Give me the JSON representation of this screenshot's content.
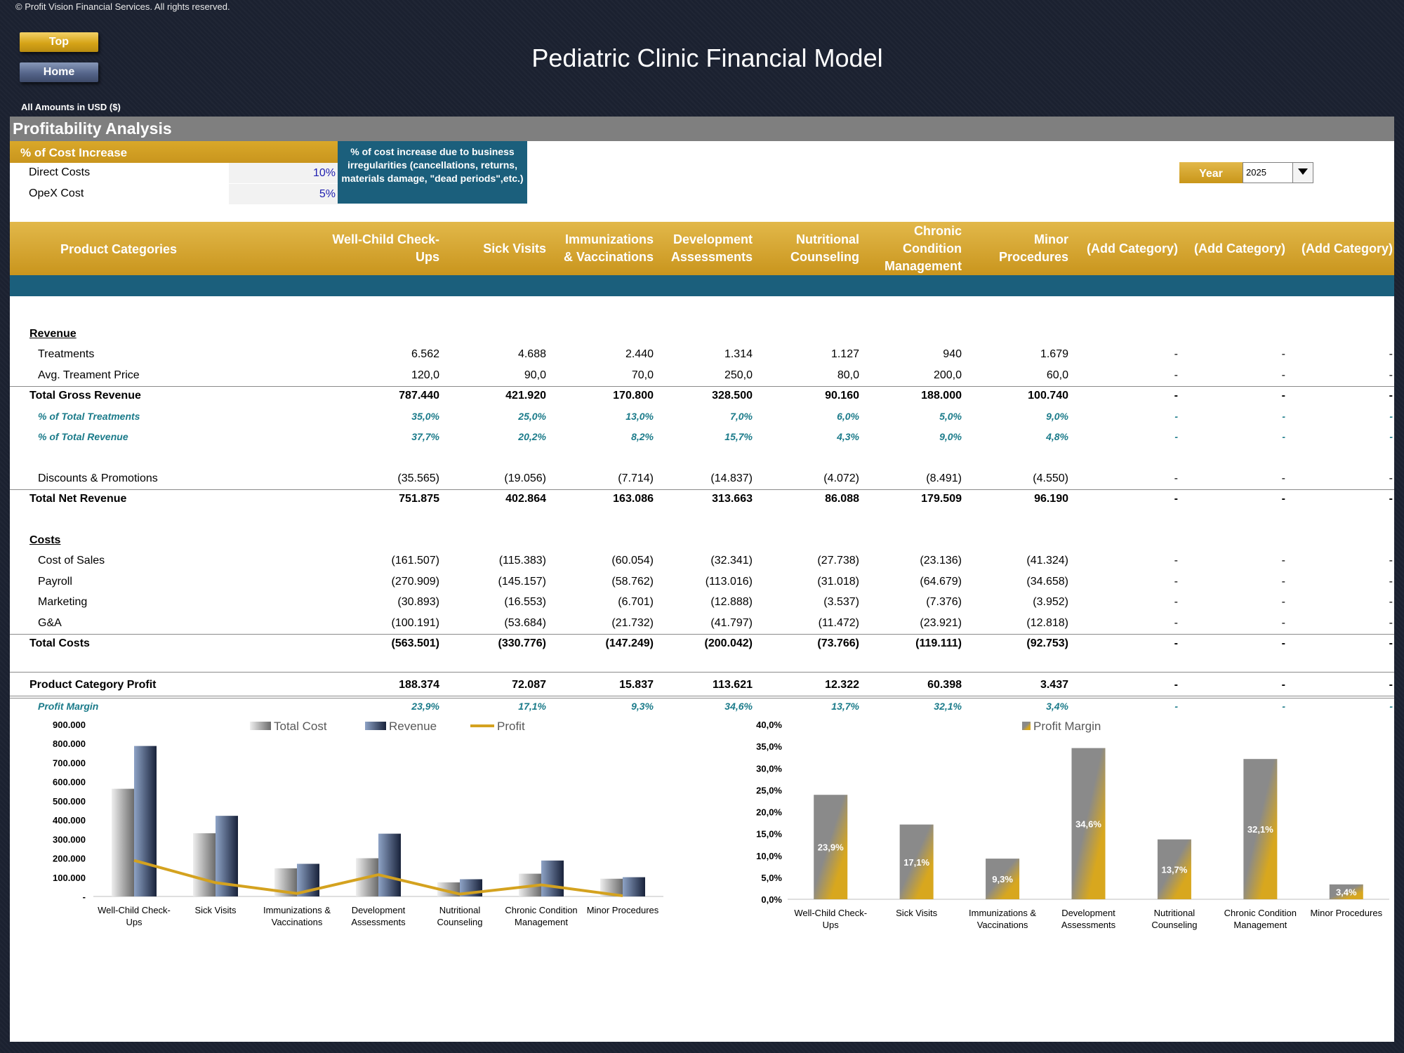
{
  "copyright": "© Profit Vision Financial Services. All rights reserved.",
  "nav": {
    "top_label": "Top",
    "home_label": "Home"
  },
  "title": "Pediatric Clinic Financial Model",
  "amounts_note": "All Amounts in  USD ($)",
  "section_title": "Profitability Analysis",
  "cost_increase": {
    "header": "% of Cost Increase",
    "rows": [
      {
        "label": "Direct Costs",
        "value": "10%"
      },
      {
        "label": "OpeX Cost",
        "value": "5%"
      }
    ],
    "note": "% of cost increase due to business irregularities (cancellations, returns, materials damage, \"dead periods\",etc.)"
  },
  "year": {
    "label": "Year",
    "value": "2025"
  },
  "table": {
    "header_title": "Product Categories",
    "columns": [
      "Well-Child Check-Ups",
      "Sick Visits",
      "Immunizations & Vaccinations",
      "Development Assessments",
      "Nutritional Counseling",
      "Chronic Condition Management",
      "Minor Procedures",
      "(Add Category)",
      "(Add Category)",
      "(Add Category)"
    ],
    "rows": [
      {
        "label": "Revenue",
        "style": "section",
        "values": []
      },
      {
        "label": "Treatments",
        "style": "normal",
        "values": [
          "6.562",
          "4.688",
          "2.440",
          "1.314",
          "1.127",
          "940",
          "1.679",
          "-",
          "-",
          "-"
        ]
      },
      {
        "label": "Avg. Treament Price",
        "style": "normal",
        "values": [
          "120,0",
          "90,0",
          "70,0",
          "250,0",
          "80,0",
          "200,0",
          "60,0",
          "-",
          "-",
          "-"
        ]
      },
      {
        "label": "Total Gross Revenue",
        "style": "total",
        "values": [
          "787.440",
          "421.920",
          "170.800",
          "328.500",
          "90.160",
          "188.000",
          "100.740",
          "-",
          "-",
          "-"
        ]
      },
      {
        "label": "% of Total Treatments",
        "style": "pct",
        "values": [
          "35,0%",
          "25,0%",
          "13,0%",
          "7,0%",
          "6,0%",
          "5,0%",
          "9,0%",
          "-",
          "-",
          "-"
        ]
      },
      {
        "label": "% of Total Revenue",
        "style": "pct",
        "values": [
          "37,7%",
          "20,2%",
          "8,2%",
          "15,7%",
          "4,3%",
          "9,0%",
          "4,8%",
          "-",
          "-",
          "-"
        ]
      },
      {
        "label": "Discounts & Promotions",
        "style": "normal",
        "values": [
          "(35.565)",
          "(19.056)",
          "(7.714)",
          "(14.837)",
          "(4.072)",
          "(8.491)",
          "(4.550)",
          "-",
          "-",
          "-"
        ]
      },
      {
        "label": "Total Net Revenue",
        "style": "total",
        "values": [
          "751.875",
          "402.864",
          "163.086",
          "313.663",
          "86.088",
          "179.509",
          "96.190",
          "-",
          "-",
          "-"
        ]
      },
      {
        "label": "Costs",
        "style": "section",
        "values": []
      },
      {
        "label": "Cost of Sales",
        "style": "normal",
        "values": [
          "(161.507)",
          "(115.383)",
          "(60.054)",
          "(32.341)",
          "(27.738)",
          "(23.136)",
          "(41.324)",
          "-",
          "-",
          "-"
        ]
      },
      {
        "label": "Payroll",
        "style": "normal",
        "values": [
          "(270.909)",
          "(145.157)",
          "(58.762)",
          "(113.016)",
          "(31.018)",
          "(64.679)",
          "(34.658)",
          "-",
          "-",
          "-"
        ]
      },
      {
        "label": "Marketing",
        "style": "normal",
        "values": [
          "(30.893)",
          "(16.553)",
          "(6.701)",
          "(12.888)",
          "(3.537)",
          "(7.376)",
          "(3.952)",
          "-",
          "-",
          "-"
        ]
      },
      {
        "label": "G&A",
        "style": "normal",
        "values": [
          "(100.191)",
          "(53.684)",
          "(21.732)",
          "(41.797)",
          "(11.472)",
          "(23.921)",
          "(12.818)",
          "-",
          "-",
          "-"
        ]
      },
      {
        "label": "Total Costs",
        "style": "total",
        "values": [
          "(563.501)",
          "(330.776)",
          "(147.249)",
          "(200.042)",
          "(73.766)",
          "(119.111)",
          "(92.753)",
          "-",
          "-",
          "-"
        ]
      },
      {
        "label": "Product Category Profit",
        "style": "total",
        "values": [
          "188.374",
          "72.087",
          "15.837",
          "113.621",
          "12.322",
          "60.398",
          "3.437",
          "-",
          "-",
          "-"
        ]
      },
      {
        "label": "Profit Margin",
        "style": "pct",
        "values": [
          "23,9%",
          "17,1%",
          "9,3%",
          "34,6%",
          "13,7%",
          "32,1%",
          "3,4%",
          "-",
          "-",
          "-"
        ]
      }
    ]
  },
  "colors": {
    "gold": "#d4a21f",
    "teal": "#1b5f7c",
    "grey": "#7f7f7f",
    "navy": "#1f2b48"
  },
  "chart_data": [
    {
      "type": "bar",
      "categories": [
        "Well-Child Check-Ups",
        "Sick Visits",
        "Immunizations & Vaccinations",
        "Development Assessments",
        "Nutritional Counseling",
        "Chronic Condition Management",
        "Minor Procedures"
      ],
      "series": [
        {
          "name": "Total Cost",
          "type": "bar",
          "values": [
            563501,
            330776,
            147249,
            200042,
            73766,
            119111,
            92753
          ]
        },
        {
          "name": "Revenue",
          "type": "bar",
          "values": [
            787440,
            421920,
            170800,
            328500,
            90160,
            188000,
            100740
          ]
        },
        {
          "name": "Profit",
          "type": "line",
          "values": [
            188374,
            72087,
            15837,
            113621,
            12322,
            60398,
            3437
          ]
        }
      ],
      "yticks": [
        "-",
        "100.000",
        "200.000",
        "300.000",
        "400.000",
        "500.000",
        "600.000",
        "700.000",
        "800.000",
        "900.000"
      ],
      "ylim": [
        0,
        900000
      ],
      "legend": "top"
    },
    {
      "type": "bar",
      "categories": [
        "Well-Child Check-Ups",
        "Sick Visits",
        "Immunizations & Vaccinations",
        "Development Assessments",
        "Nutritional Counseling",
        "Chronic Condition Management",
        "Minor Procedures"
      ],
      "series": [
        {
          "name": "Profit Margin",
          "values": [
            23.9,
            17.1,
            9.3,
            34.6,
            13.7,
            32.1,
            3.4
          ],
          "labels": [
            "23,9%",
            "17,1%",
            "9,3%",
            "34,6%",
            "13,7%",
            "32,1%",
            "3,4%"
          ]
        }
      ],
      "yticks": [
        "0,0%",
        "5,0%",
        "10,0%",
        "15,0%",
        "20,0%",
        "25,0%",
        "30,0%",
        "35,0%",
        "40,0%"
      ],
      "ylim": [
        0,
        40
      ],
      "legend": "top"
    }
  ]
}
